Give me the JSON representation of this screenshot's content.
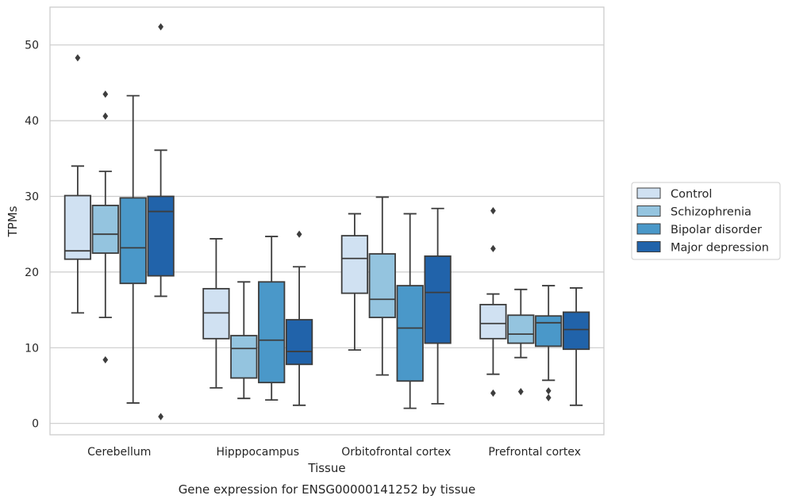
{
  "chart_data": {
    "type": "box",
    "title": "",
    "xlabel": "Tissue",
    "ylabel": "TPMs",
    "caption": "Gene expression for ENSG00000141252 by tissue",
    "ylim": [
      -1.5,
      55
    ],
    "yticks": [
      0,
      10,
      20,
      30,
      40,
      50
    ],
    "grid": "horizontal",
    "legend_position": "right",
    "categories": [
      "Cerebellum",
      "Hipppocampus",
      "Orbitofrontal cortex",
      "Prefrontal cortex"
    ],
    "series": [
      {
        "name": "Control",
        "color": "#d0e1f2",
        "boxes": [
          {
            "whisker_low": 14.6,
            "q1": 21.7,
            "median": 22.8,
            "q3": 30.1,
            "whisker_high": 34.0,
            "outliers": [
              48.3
            ]
          },
          {
            "whisker_low": 4.7,
            "q1": 11.2,
            "median": 14.6,
            "q3": 17.8,
            "whisker_high": 24.4,
            "outliers": []
          },
          {
            "whisker_low": 9.7,
            "q1": 17.2,
            "median": 21.8,
            "q3": 24.8,
            "whisker_high": 27.7,
            "outliers": []
          },
          {
            "whisker_low": 6.5,
            "q1": 11.2,
            "median": 13.2,
            "q3": 15.7,
            "whisker_high": 17.1,
            "outliers": [
              28.1,
              23.1,
              4.0
            ]
          }
        ]
      },
      {
        "name": "Schizophrenia",
        "color": "#94c4df",
        "boxes": [
          {
            "whisker_low": 14.0,
            "q1": 22.5,
            "median": 25.0,
            "q3": 28.8,
            "whisker_high": 33.3,
            "outliers": [
              43.5,
              40.6,
              8.4
            ]
          },
          {
            "whisker_low": 3.3,
            "q1": 6.0,
            "median": 9.9,
            "q3": 11.6,
            "whisker_high": 18.7,
            "outliers": []
          },
          {
            "whisker_low": 6.4,
            "q1": 14.0,
            "median": 16.4,
            "q3": 22.4,
            "whisker_high": 29.9,
            "outliers": []
          },
          {
            "whisker_low": 8.7,
            "q1": 10.6,
            "median": 11.8,
            "q3": 14.3,
            "whisker_high": 17.7,
            "outliers": [
              4.2
            ]
          }
        ]
      },
      {
        "name": "Bipolar disorder",
        "color": "#4a98c9",
        "boxes": [
          {
            "whisker_low": 2.7,
            "q1": 18.5,
            "median": 23.2,
            "q3": 29.8,
            "whisker_high": 43.3,
            "outliers": []
          },
          {
            "whisker_low": 3.1,
            "q1": 5.4,
            "median": 11.0,
            "q3": 18.7,
            "whisker_high": 24.7,
            "outliers": []
          },
          {
            "whisker_low": 2.0,
            "q1": 5.6,
            "median": 12.6,
            "q3": 18.2,
            "whisker_high": 27.7,
            "outliers": []
          },
          {
            "whisker_low": 5.7,
            "q1": 10.2,
            "median": 13.3,
            "q3": 14.2,
            "whisker_high": 18.2,
            "outliers": [
              4.3,
              3.4
            ]
          }
        ]
      },
      {
        "name": "Major depression",
        "color": "#2163aa",
        "boxes": [
          {
            "whisker_low": 16.8,
            "q1": 19.5,
            "median": 28.0,
            "q3": 30.0,
            "whisker_high": 36.1,
            "outliers": [
              52.4,
              0.9
            ]
          },
          {
            "whisker_low": 2.4,
            "q1": 7.8,
            "median": 9.5,
            "q3": 13.7,
            "whisker_high": 20.7,
            "outliers": [
              25.0
            ]
          },
          {
            "whisker_low": 2.6,
            "q1": 10.6,
            "median": 17.3,
            "q3": 22.1,
            "whisker_high": 28.4,
            "outliers": []
          },
          {
            "whisker_low": 2.4,
            "q1": 9.8,
            "median": 12.4,
            "q3": 14.7,
            "whisker_high": 17.9,
            "outliers": []
          }
        ]
      }
    ]
  }
}
